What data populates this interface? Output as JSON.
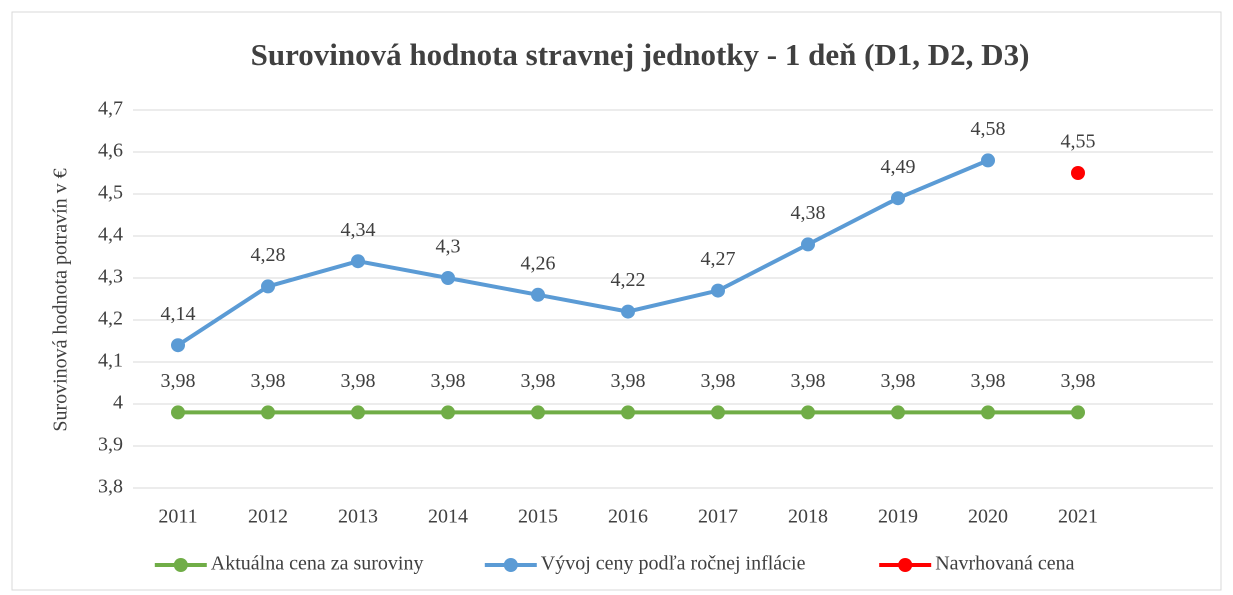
{
  "chart_data": {
    "type": "line",
    "title": "Surovinová hodnota stravnej jednotky - 1 deň (D1, D2, D3)",
    "y_label": "Surovinová hodnota potravín v €",
    "categories": [
      "2011",
      "2012",
      "2013",
      "2014",
      "2015",
      "2016",
      "2017",
      "2018",
      "2019",
      "2020",
      "2021",
      null
    ],
    "series": [
      {
        "name": "Aktuálna cena za suroviny",
        "color": "#70ad47",
        "values": [
          3.98,
          3.98,
          3.98,
          3.98,
          3.98,
          3.98,
          3.98,
          3.98,
          3.98,
          3.98,
          3.98,
          null
        ],
        "value_labels": [
          "3,98",
          "3,98",
          "3,98",
          "3,98",
          "3,98",
          "3,98",
          "3,98",
          "3,98",
          "3,98",
          "3,98",
          "3,98",
          null
        ]
      },
      {
        "name": "Vývoj ceny podľa ročnej inflácie",
        "color": "#5b9bd5",
        "values": [
          4.14,
          4.28,
          4.34,
          4.3,
          4.26,
          4.22,
          4.27,
          4.38,
          4.49,
          4.58,
          null,
          null
        ],
        "value_labels": [
          "4,14",
          "4,28",
          "4,34",
          "4,3",
          "4,26",
          "4,22",
          "4,27",
          "4,38",
          "4,49",
          "4,58",
          null,
          null
        ]
      },
      {
        "name": "Navrhovaná cena",
        "color": "#ff0000",
        "values": [
          null,
          null,
          null,
          null,
          null,
          null,
          null,
          null,
          null,
          null,
          4.55,
          null
        ],
        "value_labels": [
          null,
          null,
          null,
          null,
          null,
          null,
          null,
          null,
          null,
          null,
          "4,55",
          null
        ]
      }
    ],
    "ylim": [
      3.8,
      4.7
    ],
    "yticks": [
      {
        "value": 3.8,
        "label": "3,8"
      },
      {
        "value": 3.9,
        "label": "3,9"
      },
      4,
      {
        "value": 4.1,
        "label": "4,1"
      },
      {
        "value": 4.2,
        "label": "4,2"
      },
      {
        "value": 4.3,
        "label": "4,3"
      },
      {
        "value": 4.4,
        "label": "4,4"
      },
      {
        "value": 4.5,
        "label": "4,5"
      },
      {
        "value": 4.6,
        "label": "4,6"
      },
      {
        "value": 4.7,
        "label": "4,7"
      }
    ],
    "grid": true,
    "legend": "bottom"
  }
}
